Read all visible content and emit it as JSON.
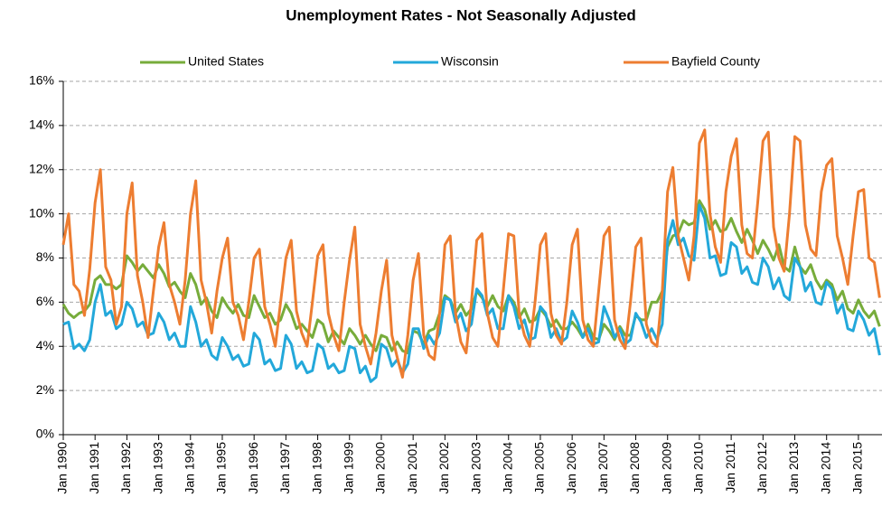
{
  "chart_data": {
    "type": "line",
    "title": "Unemployment Rates - Not Seasonally Adjusted",
    "legend": "top",
    "grid": true,
    "categories": [
      "Jan 1990",
      null,
      null,
      null,
      null,
      null,
      "Jan 1991",
      null,
      null,
      null,
      null,
      null,
      "Jan 1992",
      null,
      null,
      null,
      null,
      null,
      "Jan 1993",
      null,
      null,
      null,
      null,
      null,
      "Jan 1994",
      null,
      null,
      null,
      null,
      null,
      "Jan 1995",
      null,
      null,
      null,
      null,
      null,
      "Jan 1996",
      null,
      null,
      null,
      null,
      null,
      "Jan 1997",
      null,
      null,
      null,
      null,
      null,
      "Jan 1998",
      null,
      null,
      null,
      null,
      null,
      "Jan 1999",
      null,
      null,
      null,
      null,
      null,
      "Jan 2000",
      null,
      null,
      null,
      null,
      null,
      "Jan 2001",
      null,
      null,
      null,
      null,
      null,
      "Jan 2002",
      null,
      null,
      null,
      null,
      null,
      "Jan 2003",
      null,
      null,
      null,
      null,
      null,
      "Jan 2004",
      null,
      null,
      null,
      null,
      null,
      "Jan 2005",
      null,
      null,
      null,
      null,
      null,
      "Jan 2006",
      null,
      null,
      null,
      null,
      null,
      "Jan 2007",
      null,
      null,
      null,
      null,
      null,
      "Jan 2008",
      null,
      null,
      null,
      null,
      null,
      "Jan 2009",
      null,
      null,
      null,
      null,
      null,
      "Jan 2010",
      null,
      null,
      null,
      null,
      null,
      "Jan 2011",
      null,
      null,
      null,
      null,
      null,
      "Jan 2012",
      null,
      null,
      null,
      null,
      null,
      "Jan 2013",
      null,
      null,
      null,
      null,
      null,
      "Jan 2014",
      null,
      null,
      null,
      null,
      null,
      "Jan 2015",
      null,
      null,
      null,
      null
    ],
    "series": [
      {
        "name": "United States",
        "color": "#77ac3b",
        "values": [
          5.9,
          5.5,
          5.3,
          5.5,
          5.6,
          5.9,
          7.0,
          7.2,
          6.8,
          6.8,
          6.6,
          6.8,
          8.1,
          7.8,
          7.4,
          7.7,
          7.4,
          7.1,
          7.7,
          7.3,
          6.7,
          6.9,
          6.5,
          6.2,
          7.3,
          6.8,
          5.9,
          6.2,
          5.6,
          5.3,
          6.2,
          5.8,
          5.5,
          5.9,
          5.4,
          5.3,
          6.3,
          5.8,
          5.3,
          5.5,
          5.0,
          5.2,
          5.9,
          5.5,
          4.8,
          5.0,
          4.7,
          4.4,
          5.2,
          5.0,
          4.2,
          4.7,
          4.4,
          4.1,
          4.8,
          4.5,
          4.1,
          4.5,
          4.1,
          3.8,
          4.5,
          4.4,
          3.8,
          4.2,
          3.8,
          3.7,
          4.7,
          4.6,
          4.1,
          4.7,
          4.8,
          5.5,
          6.3,
          6.1,
          5.5,
          5.9,
          5.4,
          5.7,
          6.5,
          6.2,
          5.8,
          6.3,
          5.8,
          5.6,
          6.3,
          6.0,
          5.3,
          5.7,
          5.1,
          5.2,
          5.7,
          5.4,
          4.9,
          5.2,
          4.8,
          4.8,
          5.1,
          4.8,
          4.4,
          5.0,
          4.4,
          4.3,
          5.0,
          4.7,
          4.3,
          4.9,
          4.5,
          4.5,
          5.4,
          5.2,
          5.2,
          6.0,
          6.0,
          6.5,
          8.5,
          9.0,
          9.1,
          9.7,
          9.5,
          9.6,
          10.6,
          10.2,
          9.3,
          9.7,
          9.2,
          9.3,
          9.8,
          9.2,
          8.7,
          9.3,
          8.8,
          8.2,
          8.8,
          8.4,
          7.9,
          8.6,
          7.6,
          7.4,
          8.5,
          7.6,
          7.3,
          7.7,
          7.0,
          6.6,
          7.0,
          6.8,
          6.1,
          6.5,
          5.7,
          5.5,
          6.1,
          5.6,
          5.3,
          5.6,
          4.9
        ]
      },
      {
        "name": "Wisconsin",
        "color": "#23a8da",
        "values": [
          5.0,
          5.1,
          3.9,
          4.1,
          3.8,
          4.3,
          6.0,
          6.8,
          5.4,
          5.6,
          4.8,
          5.0,
          6.0,
          5.7,
          4.9,
          5.1,
          4.5,
          4.6,
          5.5,
          5.1,
          4.3,
          4.6,
          4.0,
          4.0,
          5.8,
          5.1,
          4.0,
          4.3,
          3.6,
          3.4,
          4.4,
          4.0,
          3.4,
          3.6,
          3.1,
          3.2,
          4.6,
          4.3,
          3.2,
          3.4,
          2.9,
          3.0,
          4.5,
          4.1,
          3.0,
          3.3,
          2.8,
          2.9,
          4.1,
          3.9,
          3.0,
          3.2,
          2.8,
          2.9,
          4.0,
          3.9,
          2.8,
          3.1,
          2.4,
          2.6,
          4.1,
          3.9,
          3.1,
          3.4,
          2.8,
          3.2,
          4.8,
          4.8,
          3.9,
          4.5,
          4.1,
          4.6,
          6.2,
          6.1,
          5.1,
          5.5,
          4.7,
          5.0,
          6.6,
          6.3,
          5.4,
          5.7,
          4.8,
          4.8,
          6.3,
          5.8,
          4.8,
          5.2,
          4.3,
          4.4,
          5.8,
          5.5,
          4.4,
          4.8,
          4.2,
          4.4,
          5.6,
          5.1,
          4.4,
          4.8,
          4.1,
          4.2,
          5.8,
          5.2,
          4.4,
          4.8,
          4.1,
          4.3,
          5.5,
          5.1,
          4.4,
          4.8,
          4.3,
          5.0,
          8.8,
          9.7,
          8.6,
          8.9,
          8.1,
          7.9,
          10.4,
          9.8,
          8.0,
          8.1,
          7.2,
          7.3,
          8.7,
          8.5,
          7.3,
          7.6,
          6.9,
          6.8,
          8.0,
          7.6,
          6.6,
          7.1,
          6.3,
          6.1,
          8.0,
          7.6,
          6.5,
          6.9,
          6.0,
          5.9,
          6.9,
          6.6,
          5.5,
          5.9,
          4.8,
          4.7,
          5.6,
          5.2,
          4.5,
          4.8,
          3.6
        ]
      },
      {
        "name": "Bayfield County",
        "color": "#ed7d31",
        "values": [
          8.6,
          10.0,
          6.8,
          6.5,
          5.4,
          7.5,
          10.5,
          12.0,
          7.6,
          7.0,
          5.0,
          5.8,
          10.0,
          11.4,
          7.2,
          6.0,
          4.4,
          6.5,
          8.5,
          9.6,
          6.8,
          6.0,
          5.0,
          7.0,
          10.0,
          11.5,
          7.0,
          6.0,
          4.6,
          6.5,
          8.0,
          8.9,
          6.0,
          5.4,
          4.3,
          6.0,
          8.0,
          8.4,
          5.8,
          5.0,
          4.0,
          6.0,
          8.0,
          8.8,
          5.6,
          4.6,
          4.0,
          6.0,
          8.1,
          8.6,
          5.5,
          4.5,
          3.8,
          6.0,
          7.9,
          9.4,
          5.0,
          4.0,
          3.2,
          4.6,
          6.5,
          7.9,
          4.5,
          3.5,
          2.6,
          4.5,
          7.0,
          8.2,
          4.5,
          3.6,
          3.4,
          5.5,
          8.6,
          9.0,
          5.5,
          4.2,
          3.7,
          6.0,
          8.8,
          9.1,
          5.5,
          4.4,
          4.0,
          6.5,
          9.1,
          9.0,
          5.5,
          4.5,
          4.0,
          6.0,
          8.6,
          9.1,
          5.5,
          4.5,
          4.1,
          6.0,
          8.6,
          9.3,
          5.2,
          4.3,
          4.0,
          6.5,
          9.0,
          9.4,
          5.2,
          4.3,
          3.9,
          6.0,
          8.5,
          8.9,
          5.0,
          4.2,
          4.0,
          6.5,
          11.0,
          12.1,
          9.0,
          8.0,
          7.0,
          9.0,
          13.2,
          13.8,
          10.0,
          8.5,
          7.8,
          11.0,
          12.6,
          13.4,
          9.5,
          8.2,
          8.0,
          10.5,
          13.3,
          13.7,
          9.4,
          8.0,
          7.4,
          10.0,
          13.5,
          13.3,
          9.5,
          8.4,
          8.1,
          11.0,
          12.2,
          12.5,
          9.0,
          8.0,
          6.8,
          9.0,
          11.0,
          11.1,
          8.0,
          7.8,
          6.2
        ]
      }
    ],
    "ylim": [
      0,
      16
    ],
    "yticks": [
      {
        "value": 0,
        "label": "0%"
      },
      {
        "value": 2,
        "label": "2%"
      },
      {
        "value": 4,
        "label": "4%"
      },
      {
        "value": 6,
        "label": "6%"
      },
      {
        "value": 8,
        "label": "8%"
      },
      {
        "value": 10,
        "label": "10%"
      },
      {
        "value": 12,
        "label": "12%"
      },
      {
        "value": 14,
        "label": "14%"
      },
      {
        "value": 16,
        "label": "16%"
      }
    ]
  }
}
